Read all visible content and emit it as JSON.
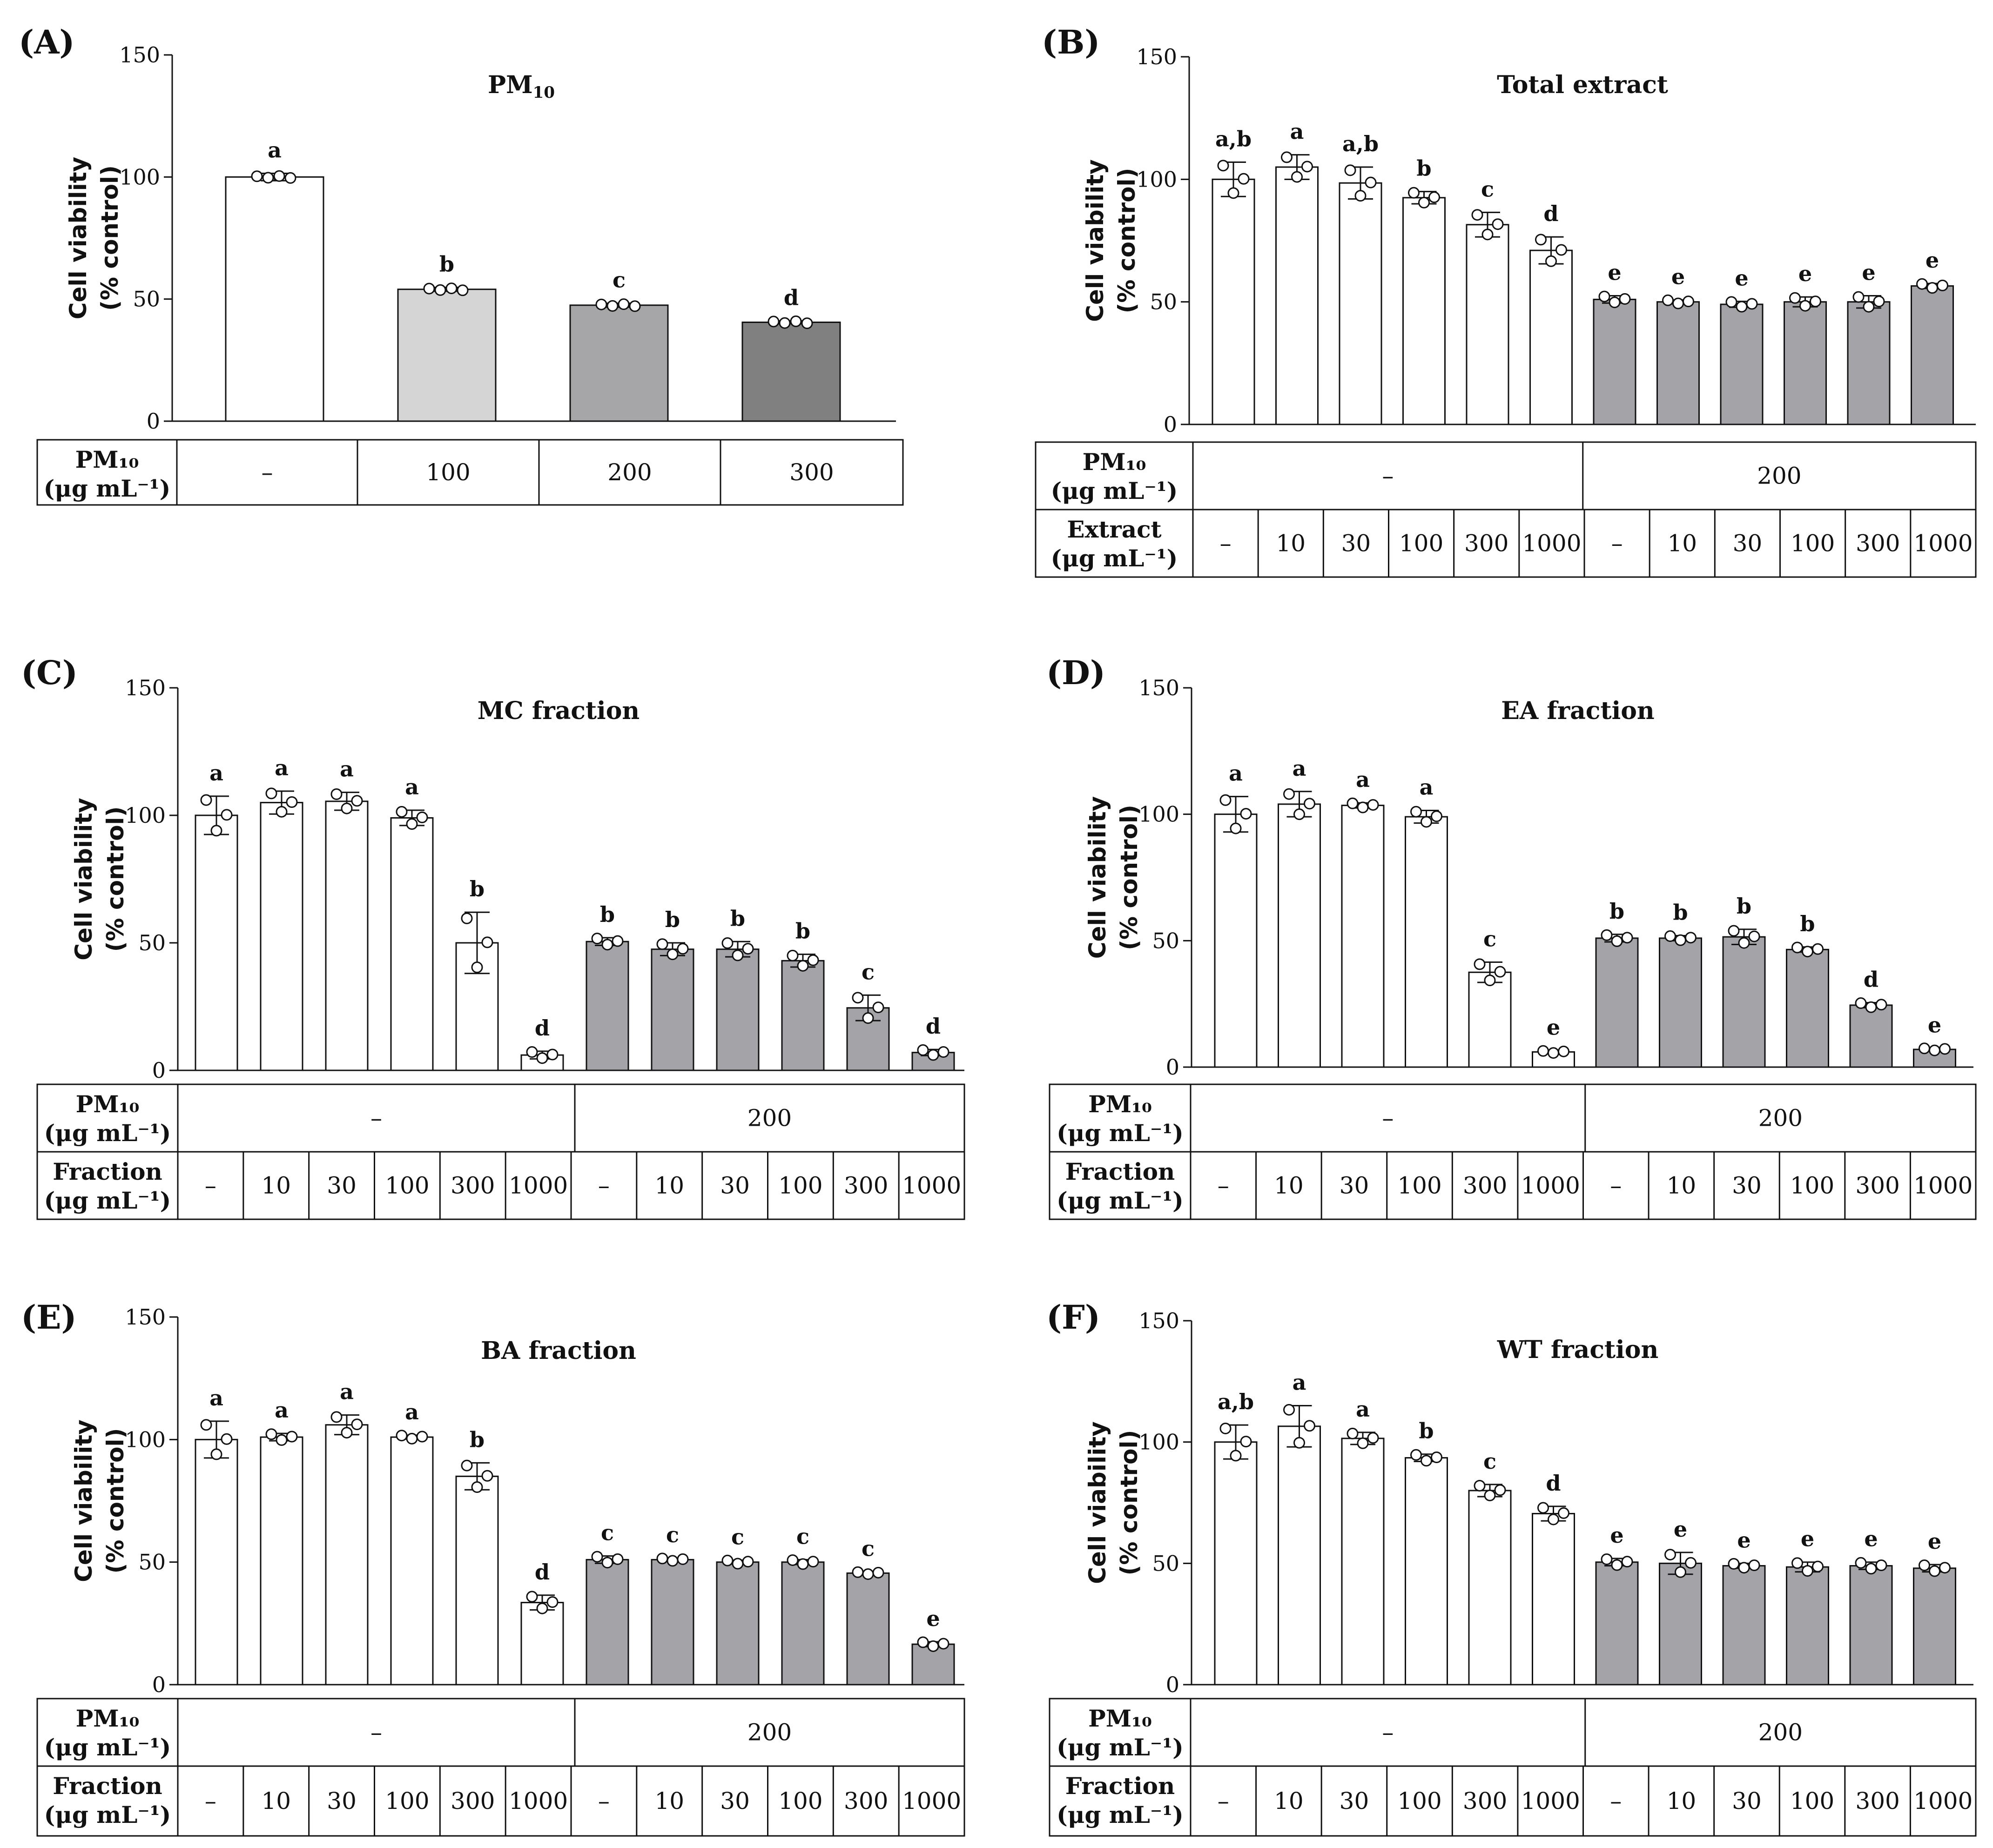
{
  "chart_data": [
    {
      "panel": "(A)",
      "type": "bar",
      "title": "PM10",
      "title_main": "PM",
      "title_sub": "10",
      "ylabel_line1": "Cell viability",
      "ylabel_line2": "(% control)",
      "ylim": [
        0,
        150
      ],
      "yticks": [
        "0",
        "50",
        "100",
        "150"
      ],
      "values": [
        100,
        54,
        47.5,
        40.5
      ],
      "errors": [
        1.5,
        0.8,
        0.8,
        0.6
      ],
      "letters": [
        "a",
        "b",
        "c",
        "d"
      ],
      "colors": [
        "#ffffff",
        "#d5d5d5",
        "#a6a6a8",
        "#808080"
      ],
      "rows": [
        {
          "label1": "PM₁₀",
          "label2": "(μg mL⁻¹)",
          "cells": [
            "–",
            "100",
            "200",
            "300"
          ]
        }
      ]
    },
    {
      "panel": "(B)",
      "type": "bar",
      "title": "Total extract",
      "ylabel_line1": "Cell viability",
      "ylabel_line2": "(% control)",
      "ylim": [
        0,
        150
      ],
      "yticks": [
        "0",
        "50",
        "100",
        "150"
      ],
      "values": [
        100,
        105,
        98.5,
        92.5,
        81.5,
        71,
        51,
        50,
        49,
        50,
        50,
        56.5
      ],
      "errors": [
        7,
        5,
        6.5,
        2.5,
        5,
        5.5,
        1.5,
        0.8,
        1.2,
        2,
        2.5,
        1
      ],
      "letters": [
        "a,b",
        "a",
        "a,b",
        "b",
        "c",
        "d",
        "e",
        "e",
        "e",
        "e",
        "e",
        "e"
      ],
      "rows": [
        {
          "label1": "PM₁₀",
          "label2": "(μg mL⁻¹)",
          "cells": [
            "–",
            "200"
          ]
        },
        {
          "label1": "Extract",
          "label2": "(μg mL⁻¹)",
          "cells": [
            "–",
            "10",
            "30",
            "100",
            "300",
            "1000",
            "–",
            "10",
            "30",
            "100",
            "300",
            "1000"
          ]
        }
      ]
    },
    {
      "panel": "(C)",
      "type": "bar",
      "title": "MC fraction",
      "ylabel_line1": "Cell viability",
      "ylabel_line2": "(% control)",
      "ylim": [
        0,
        150
      ],
      "yticks": [
        "0",
        "50",
        "100",
        "150"
      ],
      "values": [
        100,
        105,
        105.5,
        99,
        50,
        6,
        50.5,
        47.5,
        47.5,
        43,
        24.5,
        7
      ],
      "errors": [
        7.5,
        4.5,
        3.5,
        3,
        12,
        1.5,
        1.5,
        2.5,
        3,
        2.5,
        5,
        1.2
      ],
      "letters": [
        "a",
        "a",
        "a",
        "a",
        "b",
        "d",
        "b",
        "b",
        "b",
        "b",
        "c",
        "d"
      ],
      "rows": [
        {
          "label1": "PM₁₀",
          "label2": "(μg mL⁻¹)",
          "cells": [
            "–",
            "200"
          ]
        },
        {
          "label1": "Fraction",
          "label2": "(μg mL⁻¹)",
          "cells": [
            "–",
            "10",
            "30",
            "100",
            "300",
            "1000",
            "–",
            "10",
            "30",
            "100",
            "300",
            "1000"
          ]
        }
      ]
    },
    {
      "panel": "(D)",
      "type": "bar",
      "title": "EA fraction",
      "ylabel_line1": "Cell viability",
      "ylabel_line2": "(% control)",
      "ylim": [
        0,
        150
      ],
      "yticks": [
        "0",
        "50",
        "100",
        "150"
      ],
      "values": [
        100,
        104,
        103.5,
        99,
        37.5,
        6,
        51,
        51,
        51.5,
        46.5,
        24.5,
        7
      ],
      "errors": [
        7,
        5,
        1,
        2.5,
        4,
        0.5,
        1.5,
        1,
        3,
        1,
        1,
        0.5
      ],
      "letters": [
        "a",
        "a",
        "a",
        "a",
        "c",
        "e",
        "b",
        "b",
        "b",
        "b",
        "d",
        "e"
      ],
      "rows": [
        {
          "label1": "PM₁₀",
          "label2": "(μg mL⁻¹)",
          "cells": [
            "–",
            "200"
          ]
        },
        {
          "label1": "Fraction",
          "label2": "(μg mL⁻¹)",
          "cells": [
            "–",
            "10",
            "30",
            "100",
            "300",
            "1000",
            "–",
            "10",
            "30",
            "100",
            "300",
            "1000"
          ]
        }
      ]
    },
    {
      "panel": "(E)",
      "type": "bar",
      "title": "BA fraction",
      "ylabel_line1": "Cell viability",
      "ylabel_line2": "(% control)",
      "ylim": [
        0,
        150
      ],
      "yticks": [
        "0",
        "50",
        "100",
        "150"
      ],
      "values": [
        100,
        101,
        106,
        101,
        85,
        33.5,
        51,
        51,
        50,
        50,
        45.5,
        16.5
      ],
      "errors": [
        7.5,
        1.5,
        4,
        0.8,
        5.5,
        3,
        1.5,
        0.6,
        0.8,
        1,
        0.5,
        1
      ],
      "letters": [
        "a",
        "a",
        "a",
        "a",
        "b",
        "d",
        "c",
        "c",
        "c",
        "c",
        "c",
        "e"
      ],
      "rows": [
        {
          "label1": "PM₁₀",
          "label2": "(μg mL⁻¹)",
          "cells": [
            "–",
            "200"
          ]
        },
        {
          "label1": "Fraction",
          "label2": "(μg mL⁻¹)",
          "cells": [
            "–",
            "10",
            "30",
            "100",
            "300",
            "1000",
            "–",
            "10",
            "30",
            "100",
            "300",
            "1000"
          ]
        }
      ]
    },
    {
      "panel": "(F)",
      "type": "bar",
      "title": "WT fraction",
      "ylabel_line1": "Cell viability",
      "ylabel_line2": "(% control)",
      "ylim": [
        0,
        150
      ],
      "yticks": [
        "0",
        "50",
        "100",
        "150"
      ],
      "values": [
        100,
        106.5,
        101.5,
        93.5,
        80,
        70.5,
        50.5,
        50,
        49,
        48.5,
        49,
        48
      ],
      "errors": [
        7,
        8.5,
        2.5,
        1.5,
        2.5,
        3,
        1.5,
        4.5,
        1,
        2,
        1.5,
        1.5
      ],
      "letters": [
        "a,b",
        "a",
        "a",
        "b",
        "c",
        "d",
        "e",
        "e",
        "e",
        "e",
        "e",
        "e"
      ],
      "rows": [
        {
          "label1": "PM₁₀",
          "label2": "(μg mL⁻¹)",
          "cells": [
            "–",
            "200"
          ]
        },
        {
          "label1": "Fraction",
          "label2": "(μg mL⁻¹)",
          "cells": [
            "–",
            "10",
            "30",
            "100",
            "300",
            "1000",
            "–",
            "10",
            "30",
            "100",
            "300",
            "1000"
          ]
        }
      ]
    }
  ]
}
